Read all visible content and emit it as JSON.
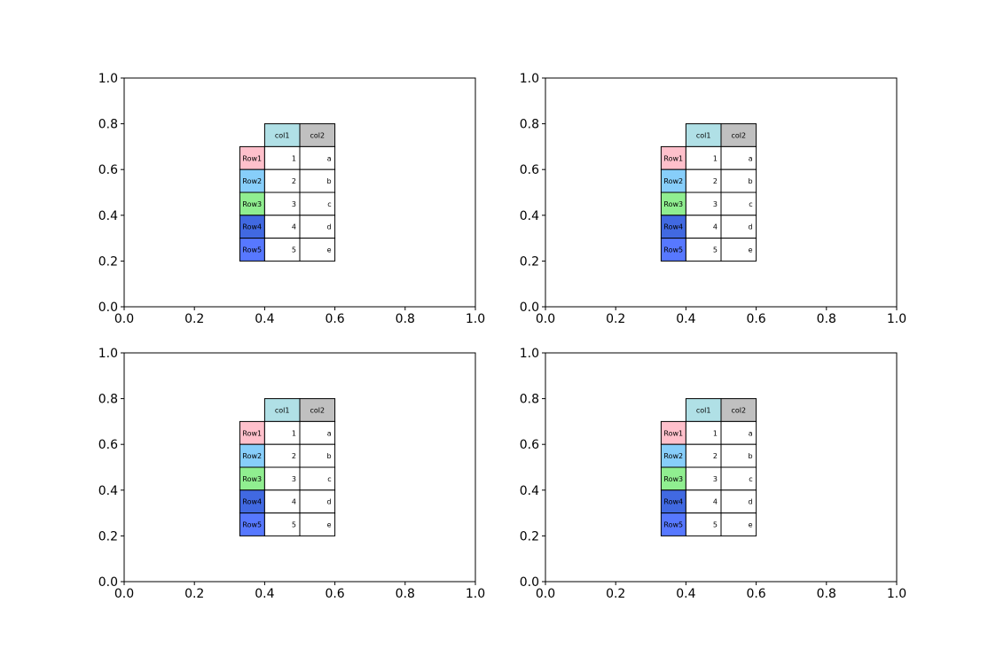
{
  "chart_data": [
    {
      "type": "table",
      "xlim": [
        0.0,
        1.0
      ],
      "ylim": [
        0.0,
        1.0
      ],
      "xticks": [
        "0.0",
        "0.2",
        "0.4",
        "0.6",
        "0.8",
        "1.0"
      ],
      "yticks": [
        "0.0",
        "0.2",
        "0.4",
        "0.6",
        "0.8",
        "1.0"
      ],
      "grid": false,
      "table": {
        "bbox_data": {
          "x0": 0.4,
          "x1": 0.6,
          "y0": 0.2,
          "y1": 0.8
        },
        "col_labels": [
          "col1",
          "col2"
        ],
        "col_colors": [
          "#b0e0e6",
          "#c0c0c0"
        ],
        "row_labels": [
          "Row1",
          "Row2",
          "Row3",
          "Row4",
          "Row5"
        ],
        "row_colors": [
          "#ffc0cb",
          "#87cefa",
          "#90ee90",
          "#4169e1",
          "#5778ff"
        ],
        "cells": [
          [
            "1",
            "a"
          ],
          [
            "2",
            "b"
          ],
          [
            "3",
            "c"
          ],
          [
            "4",
            "d"
          ],
          [
            "5",
            "e"
          ]
        ]
      }
    },
    {
      "type": "table",
      "xlim": [
        0.0,
        1.0
      ],
      "ylim": [
        0.0,
        1.0
      ],
      "xticks": [
        "0.0",
        "0.2",
        "0.4",
        "0.6",
        "0.8",
        "1.0"
      ],
      "yticks": [
        "0.0",
        "0.2",
        "0.4",
        "0.6",
        "0.8",
        "1.0"
      ],
      "grid": false,
      "table": {
        "bbox_data": {
          "x0": 0.4,
          "x1": 0.6,
          "y0": 0.2,
          "y1": 0.8
        },
        "col_labels": [
          "col1",
          "col2"
        ],
        "col_colors": [
          "#b0e0e6",
          "#c0c0c0"
        ],
        "row_labels": [
          "Row1",
          "Row2",
          "Row3",
          "Row4",
          "Row5"
        ],
        "row_colors": [
          "#ffc0cb",
          "#87cefa",
          "#90ee90",
          "#4169e1",
          "#5778ff"
        ],
        "cells": [
          [
            "1",
            "a"
          ],
          [
            "2",
            "b"
          ],
          [
            "3",
            "c"
          ],
          [
            "4",
            "d"
          ],
          [
            "5",
            "e"
          ]
        ]
      }
    },
    {
      "type": "table",
      "xlim": [
        0.0,
        1.0
      ],
      "ylim": [
        0.0,
        1.0
      ],
      "xticks": [
        "0.0",
        "0.2",
        "0.4",
        "0.6",
        "0.8",
        "1.0"
      ],
      "yticks": [
        "0.0",
        "0.2",
        "0.4",
        "0.6",
        "0.8",
        "1.0"
      ],
      "grid": false,
      "table": {
        "bbox_data": {
          "x0": 0.4,
          "x1": 0.6,
          "y0": 0.2,
          "y1": 0.8
        },
        "col_labels": [
          "col1",
          "col2"
        ],
        "col_colors": [
          "#b0e0e6",
          "#c0c0c0"
        ],
        "row_labels": [
          "Row1",
          "Row2",
          "Row3",
          "Row4",
          "Row5"
        ],
        "row_colors": [
          "#ffc0cb",
          "#87cefa",
          "#90ee90",
          "#4169e1",
          "#5778ff"
        ],
        "cells": [
          [
            "1",
            "a"
          ],
          [
            "2",
            "b"
          ],
          [
            "3",
            "c"
          ],
          [
            "4",
            "d"
          ],
          [
            "5",
            "e"
          ]
        ]
      }
    },
    {
      "type": "table",
      "xlim": [
        0.0,
        1.0
      ],
      "ylim": [
        0.0,
        1.0
      ],
      "xticks": [
        "0.0",
        "0.2",
        "0.4",
        "0.6",
        "0.8",
        "1.0"
      ],
      "yticks": [
        "0.0",
        "0.2",
        "0.4",
        "0.6",
        "0.8",
        "1.0"
      ],
      "grid": false,
      "table": {
        "bbox_data": {
          "x0": 0.4,
          "x1": 0.6,
          "y0": 0.2,
          "y1": 0.8
        },
        "col_labels": [
          "col1",
          "col2"
        ],
        "col_colors": [
          "#b0e0e6",
          "#c0c0c0"
        ],
        "row_labels": [
          "Row1",
          "Row2",
          "Row3",
          "Row4",
          "Row5"
        ],
        "row_colors": [
          "#ffc0cb",
          "#87cefa",
          "#90ee90",
          "#4169e1",
          "#5778ff"
        ],
        "cells": [
          [
            "1",
            "a"
          ],
          [
            "2",
            "b"
          ],
          [
            "3",
            "c"
          ],
          [
            "4",
            "d"
          ],
          [
            "5",
            "e"
          ]
        ]
      }
    }
  ]
}
